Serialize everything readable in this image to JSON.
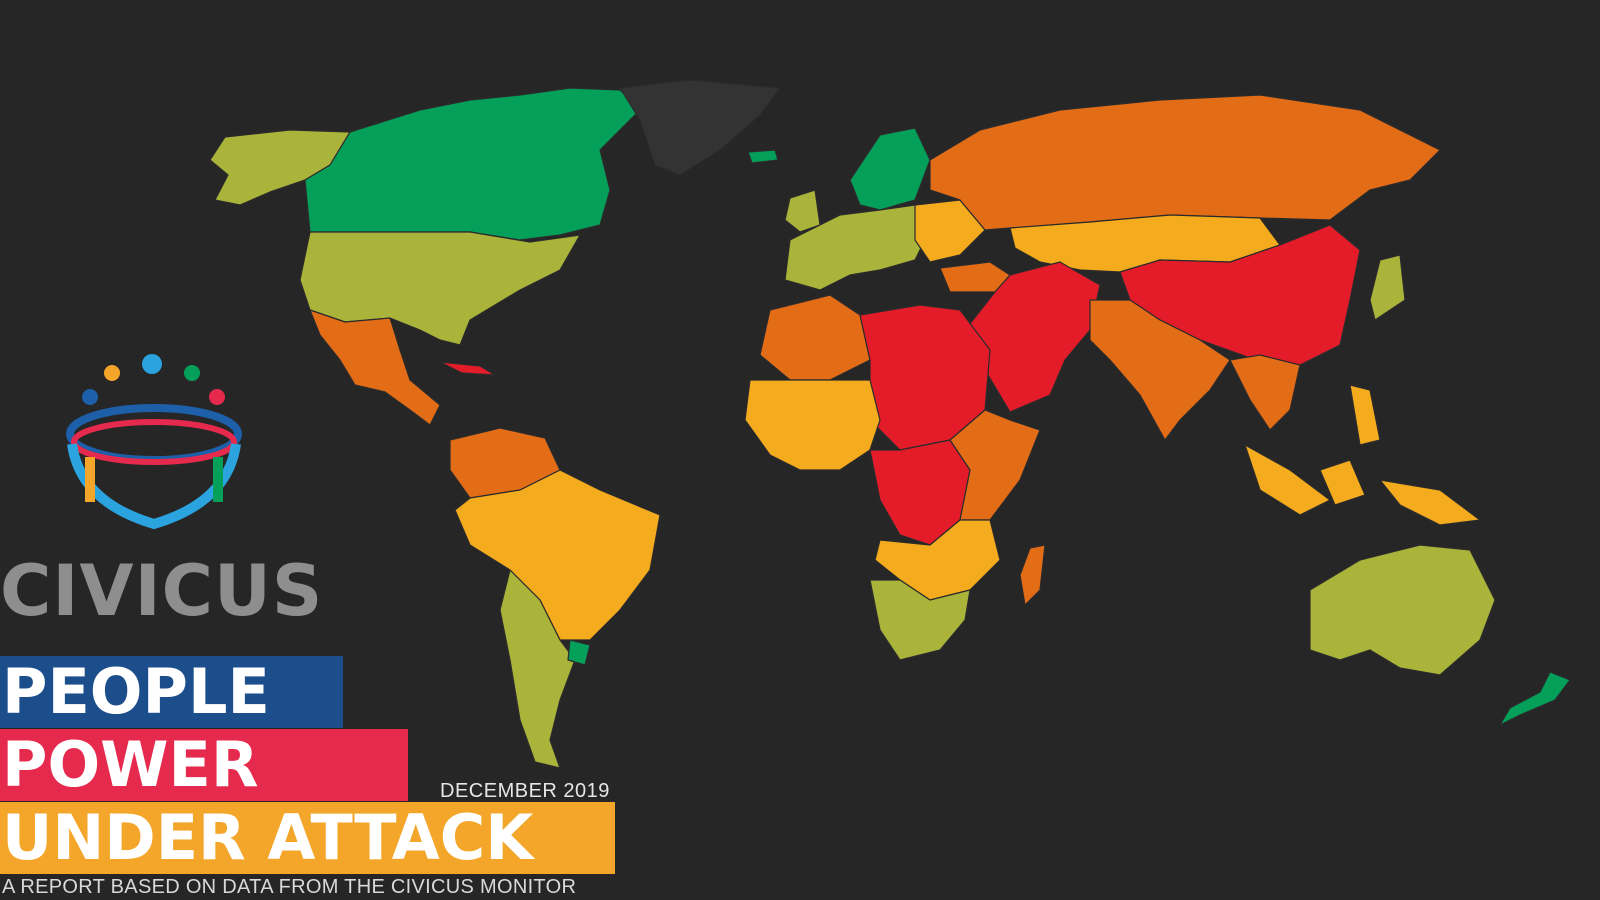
{
  "brand": {
    "name": "CIVICUS"
  },
  "report": {
    "line1": "PEOPLE",
    "line2": "POWER",
    "line3": "UNDER ATTACK",
    "date": "DECEMBER 2019",
    "subtitle": "A REPORT BASED ON DATA FROM THE CIVICUS MONITOR"
  },
  "colors": {
    "background": "#262626",
    "band1": "#1d4e8c",
    "band2": "#e52a4e",
    "band3": "#f4a62a",
    "open": "#04a05a",
    "narrowed": "#aab43a",
    "obstructed": "#f5ab1e",
    "repressed": "#e36c17",
    "closed": "#e41c2a",
    "no_data": "#333333",
    "logo_dots": [
      "#1d5fa8",
      "#f4a62a",
      "#2aa3de",
      "#04a05a",
      "#e52a4e"
    ]
  },
  "map": {
    "icon": "world-map"
  }
}
